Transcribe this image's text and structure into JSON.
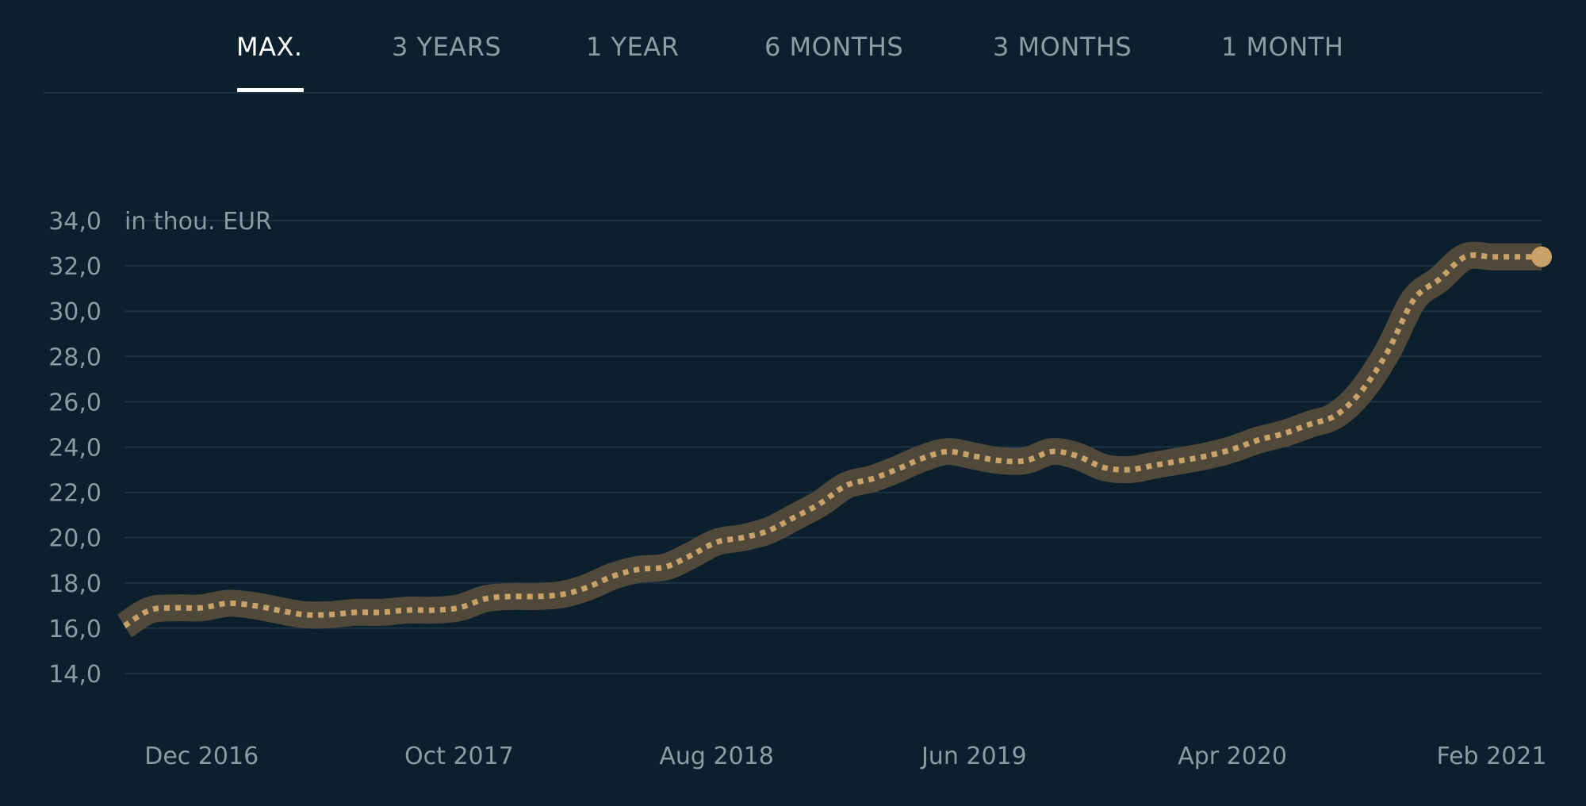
{
  "tabs": [
    {
      "label": "MAX.",
      "active": true
    },
    {
      "label": "3 YEARS",
      "active": false
    },
    {
      "label": "1 YEAR",
      "active": false
    },
    {
      "label": "6 MONTHS",
      "active": false
    },
    {
      "label": "3 MONTHS",
      "active": false
    },
    {
      "label": "1 MONTH",
      "active": false
    }
  ],
  "colors": {
    "background": "#0c1f2c",
    "band": "#50493a",
    "line": "#c9a26a",
    "marker": "#c9a26a",
    "grid": "#1e3442",
    "text": "#8c9ba4",
    "active_tab": "#ffffff"
  },
  "chart_data": {
    "type": "line",
    "unit_label": "in thou. EUR",
    "ylim": [
      14.0,
      34.0
    ],
    "y_ticks": [
      "34,0",
      "32,0",
      "30,0",
      "28,0",
      "26,0",
      "24,0",
      "22,0",
      "20,0",
      "18,0",
      "16,0",
      "14,0"
    ],
    "y_tick_values": [
      34,
      32,
      30,
      28,
      26,
      24,
      22,
      20,
      18,
      16,
      14
    ],
    "x_ticks": [
      "Dec 2016",
      "Oct 2017",
      "Aug 2018",
      "Jun 2019",
      "Apr 2020",
      "Feb 2021"
    ],
    "x_tick_dates": [
      "2016-12",
      "2017-10",
      "2018-08",
      "2019-06",
      "2020-04",
      "2021-02"
    ],
    "grid": true,
    "band": true,
    "series": [
      {
        "dates": [
          "2016-09",
          "2016-10",
          "2016-11",
          "2016-12",
          "2017-01",
          "2017-02",
          "2017-03",
          "2017-04",
          "2017-05",
          "2017-06",
          "2017-07",
          "2017-08",
          "2017-09",
          "2017-10",
          "2017-11",
          "2017-12",
          "2018-01",
          "2018-02",
          "2018-03",
          "2018-04",
          "2018-05",
          "2018-06",
          "2018-07",
          "2018-08",
          "2018-09",
          "2018-10",
          "2018-11",
          "2018-12",
          "2019-01",
          "2019-02",
          "2019-03",
          "2019-04",
          "2019-05",
          "2019-06",
          "2019-07",
          "2019-08",
          "2019-09",
          "2019-10",
          "2019-11",
          "2019-12",
          "2020-01",
          "2020-02",
          "2020-03",
          "2020-04",
          "2020-05",
          "2020-06",
          "2020-07",
          "2020-08",
          "2020-09",
          "2020-10",
          "2020-11",
          "2020-12",
          "2021-01",
          "2021-02",
          "2021-03",
          "2021-04"
        ],
        "values": [
          16.1,
          16.8,
          16.9,
          16.9,
          17.1,
          17.0,
          16.8,
          16.6,
          16.6,
          16.7,
          16.7,
          16.8,
          16.8,
          16.9,
          17.3,
          17.4,
          17.4,
          17.5,
          17.8,
          18.3,
          18.6,
          18.7,
          19.2,
          19.8,
          20.0,
          20.3,
          20.9,
          21.5,
          22.3,
          22.6,
          23.0,
          23.5,
          23.8,
          23.6,
          23.4,
          23.4,
          23.8,
          23.6,
          23.1,
          23.0,
          23.2,
          23.4,
          23.6,
          23.9,
          24.3,
          24.6,
          25.0,
          25.4,
          26.5,
          28.2,
          30.5,
          31.4,
          32.4,
          32.4,
          32.4,
          32.4
        ]
      }
    ]
  }
}
